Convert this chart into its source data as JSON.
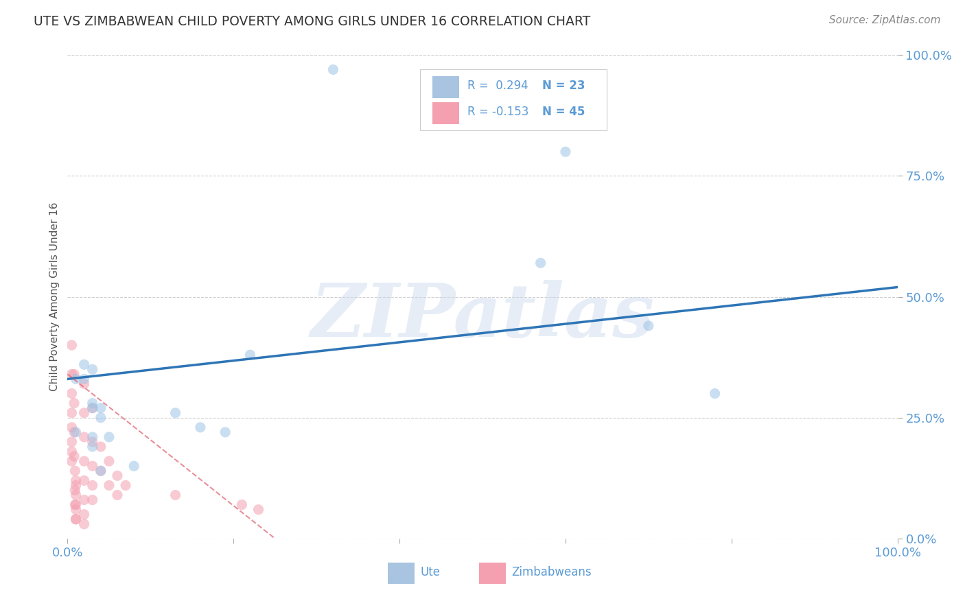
{
  "title": "UTE VS ZIMBABWEAN CHILD POVERTY AMONG GIRLS UNDER 16 CORRELATION CHART",
  "source": "Source: ZipAtlas.com",
  "ylabel": "Child Poverty Among Girls Under 16",
  "xlim": [
    0.0,
    1.0
  ],
  "ylim": [
    0.0,
    1.0
  ],
  "xtick_positions": [
    0.0,
    1.0
  ],
  "xtick_labels": [
    "0.0%",
    "100.0%"
  ],
  "ytick_positions": [
    0.0,
    0.25,
    0.5,
    0.75,
    1.0
  ],
  "ytick_labels": [
    "0.0%",
    "25.0%",
    "50.0%",
    "75.0%",
    "100.0%"
  ],
  "background_color": "#ffffff",
  "watermark_text": "ZIPatlas",
  "ute_scatter_x": [
    0.32,
    0.02,
    0.02,
    0.03,
    0.01,
    0.01,
    0.03,
    0.13,
    0.19,
    0.08,
    0.22,
    0.03,
    0.16,
    0.03,
    0.04,
    0.57,
    0.7,
    0.78,
    0.6,
    0.04,
    0.03,
    0.04,
    0.05
  ],
  "ute_scatter_y": [
    0.97,
    0.33,
    0.36,
    0.35,
    0.33,
    0.22,
    0.21,
    0.26,
    0.22,
    0.15,
    0.38,
    0.27,
    0.23,
    0.19,
    0.27,
    0.57,
    0.44,
    0.3,
    0.8,
    0.25,
    0.28,
    0.14,
    0.21
  ],
  "zim_scatter_x": [
    0.005,
    0.005,
    0.005,
    0.005,
    0.005,
    0.005,
    0.005,
    0.005,
    0.008,
    0.008,
    0.008,
    0.008,
    0.009,
    0.009,
    0.009,
    0.01,
    0.01,
    0.01,
    0.01,
    0.01,
    0.01,
    0.01,
    0.02,
    0.02,
    0.02,
    0.02,
    0.02,
    0.02,
    0.02,
    0.02,
    0.03,
    0.03,
    0.03,
    0.03,
    0.03,
    0.04,
    0.04,
    0.05,
    0.05,
    0.06,
    0.06,
    0.07,
    0.13,
    0.21,
    0.23
  ],
  "zim_scatter_y": [
    0.4,
    0.34,
    0.3,
    0.26,
    0.23,
    0.2,
    0.18,
    0.16,
    0.34,
    0.28,
    0.22,
    0.17,
    0.14,
    0.1,
    0.07,
    0.12,
    0.09,
    0.06,
    0.04,
    0.11,
    0.07,
    0.04,
    0.32,
    0.26,
    0.21,
    0.16,
    0.12,
    0.08,
    0.05,
    0.03,
    0.27,
    0.2,
    0.15,
    0.11,
    0.08,
    0.19,
    0.14,
    0.16,
    0.11,
    0.13,
    0.09,
    0.11,
    0.09,
    0.07,
    0.06
  ],
  "ute_line_x": [
    0.0,
    1.0
  ],
  "ute_line_y": [
    0.33,
    0.52
  ],
  "zim_line_x": [
    0.0,
    0.25
  ],
  "zim_line_y": [
    0.34,
    0.0
  ],
  "ute_color": "#9dc3e6",
  "zim_color": "#f4a0b0",
  "ute_line_color": "#2e75b6",
  "zim_line_color": "#e06070",
  "scatter_size": 120,
  "scatter_alpha": 0.55,
  "grid_color": "#d0d0d0",
  "title_color": "#333333",
  "axis_label_color": "#555555",
  "tick_color": "#5b9bd5",
  "source_color": "#888888",
  "legend_box_color": "#a8c4e0",
  "legend_pink_color": "#f4a0b0",
  "legend_text_color": "#5b9bd5",
  "legend_label_color": "#333333"
}
